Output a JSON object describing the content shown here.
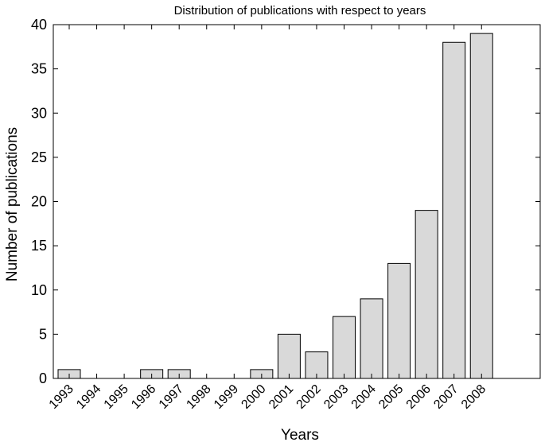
{
  "chart_data": {
    "type": "bar",
    "title": "Distribution of publications with respect to years",
    "xlabel": "Years",
    "ylabel": "Number of publications",
    "categories": [
      "1993",
      "1994",
      "1995",
      "1996",
      "1997",
      "1998",
      "1999",
      "2000",
      "2001",
      "2002",
      "2003",
      "2004",
      "2005",
      "2006",
      "2007",
      "2008"
    ],
    "values": [
      1,
      0,
      0,
      1,
      1,
      0,
      0,
      1,
      5,
      3,
      7,
      9,
      13,
      19,
      38,
      39
    ],
    "ylim": [
      0,
      40
    ],
    "yticks": [
      "0",
      "5",
      "10",
      "15",
      "20",
      "25",
      "30",
      "35",
      "40"
    ],
    "grid": false,
    "colors": {
      "bar_fill": "#d9d9d9",
      "bar_stroke": "#000000"
    }
  }
}
